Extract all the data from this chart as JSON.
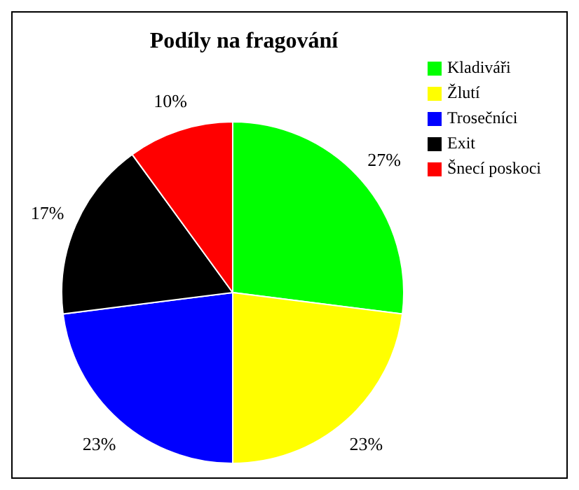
{
  "chart_data": {
    "type": "pie",
    "title": "Podíly na fragování",
    "categories": [
      "Kladiváři",
      "Žlutí",
      "Trosečníci",
      "Exit",
      "Šnecí poskoci"
    ],
    "values": [
      27,
      23,
      23,
      17,
      10
    ],
    "value_labels": [
      "27%",
      "23%",
      "23%",
      "17%",
      "10%"
    ],
    "colors": [
      "#00ff00",
      "#ffff00",
      "#0000ff",
      "#000000",
      "#ff0000"
    ],
    "legend": "top right"
  }
}
